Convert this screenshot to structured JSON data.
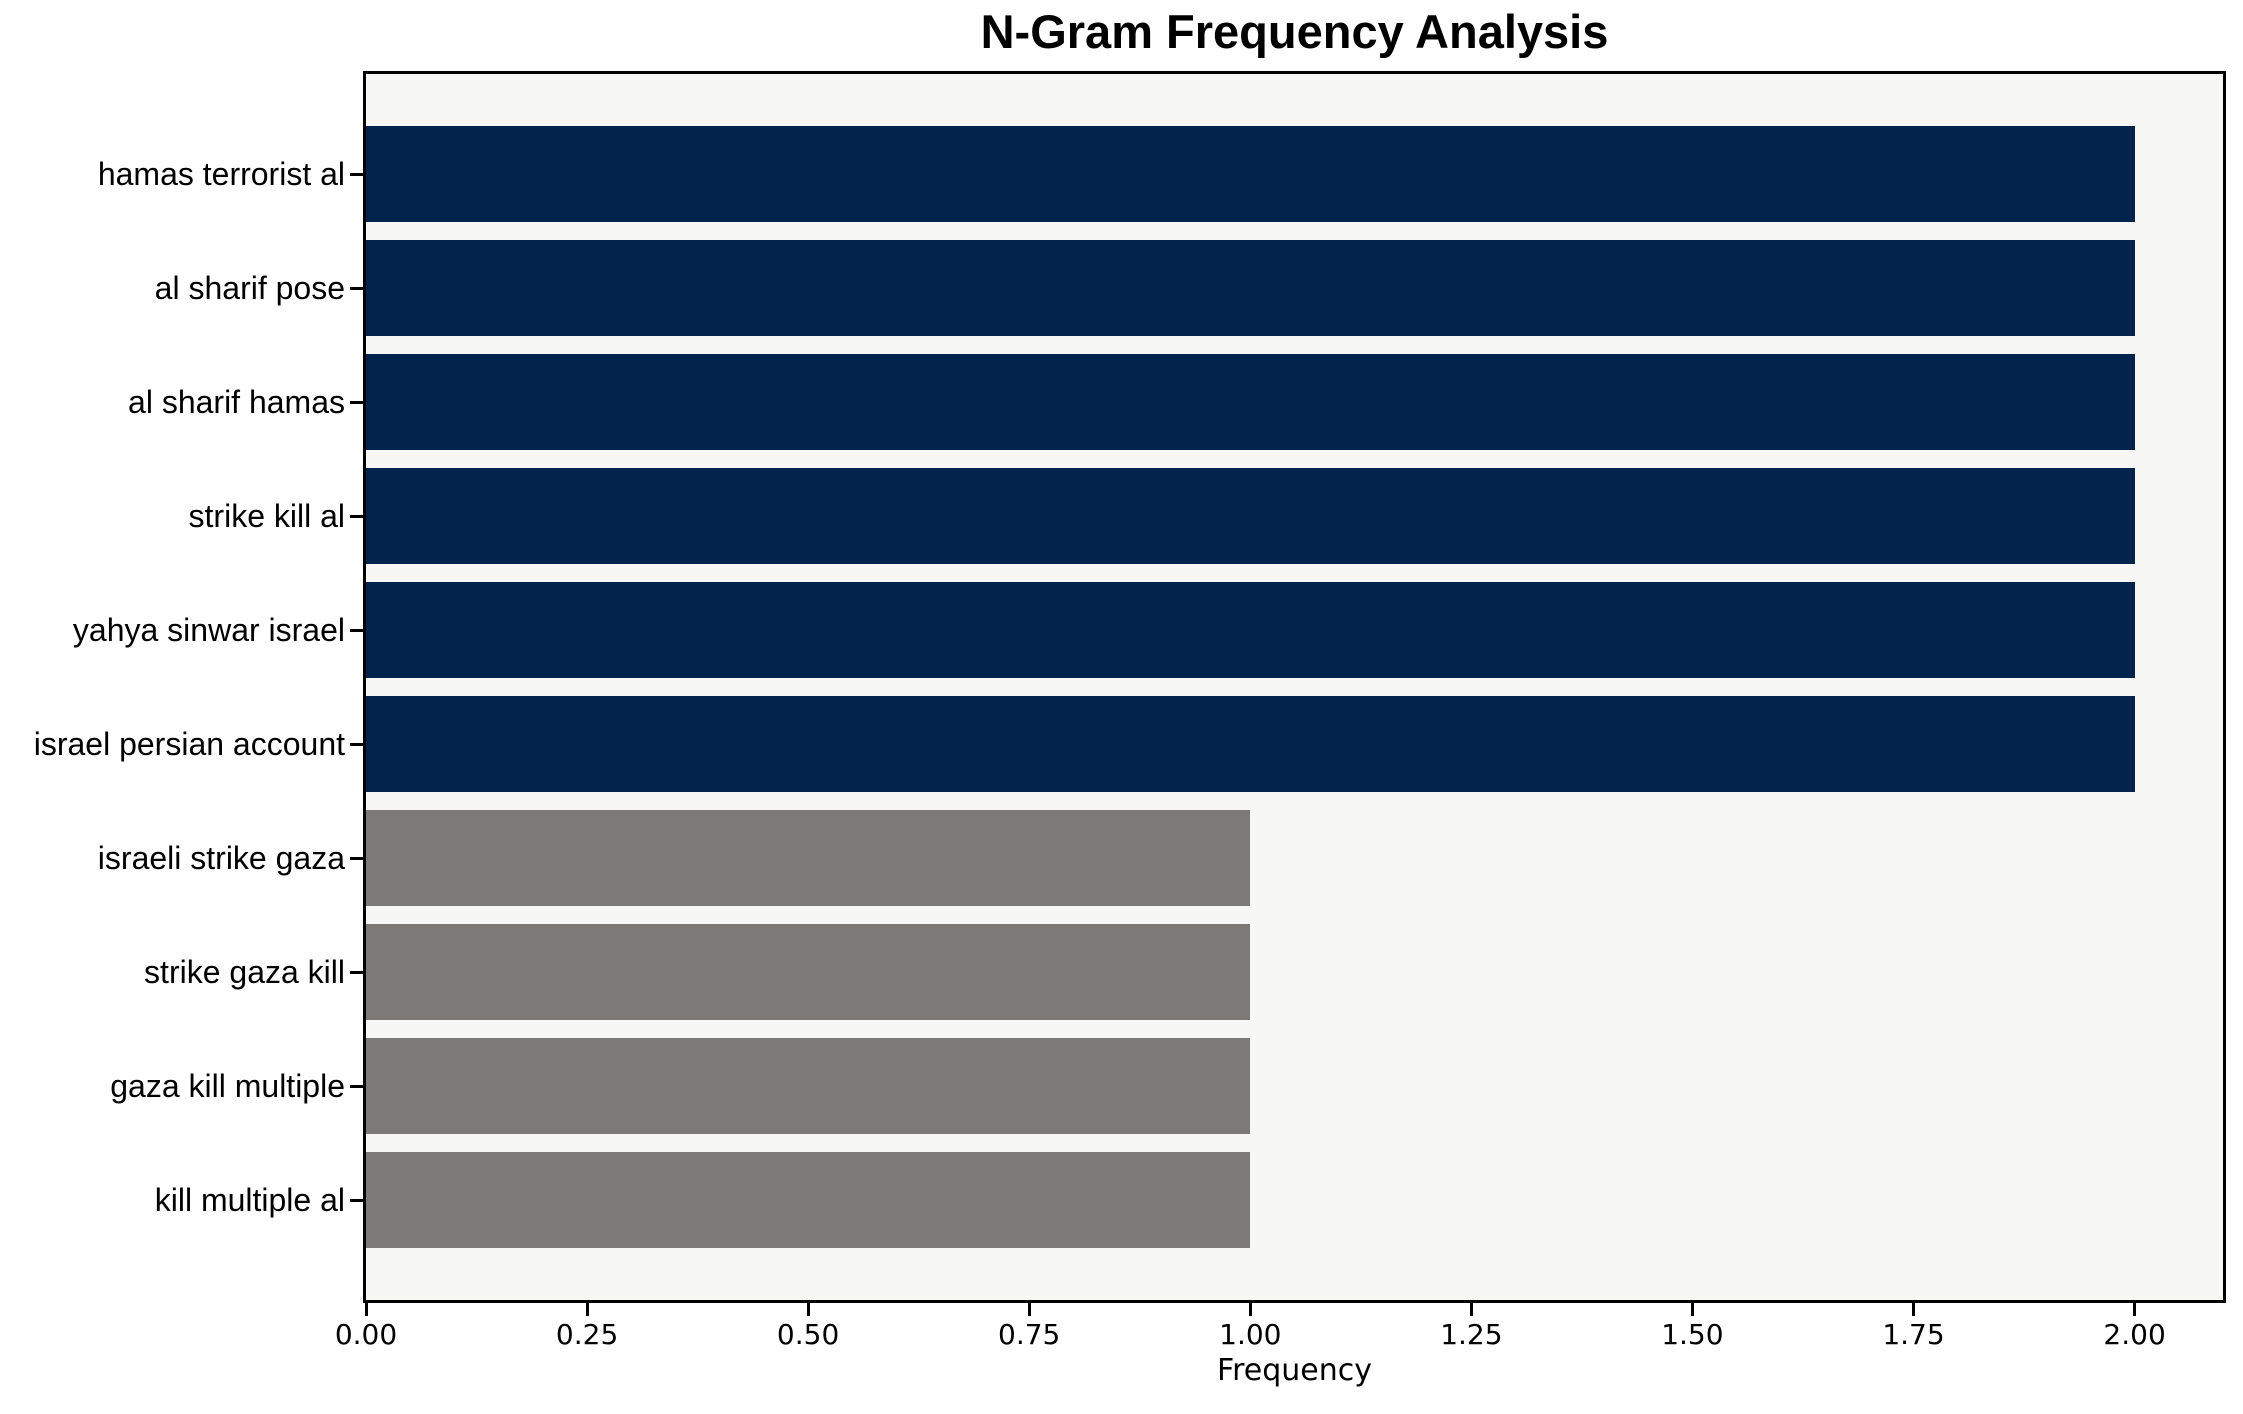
{
  "chart_data": {
    "type": "bar",
    "orientation": "horizontal",
    "title": "N-Gram Frequency Analysis",
    "xlabel": "Frequency",
    "ylabel": "",
    "categories": [
      "hamas terrorist al",
      "al sharif pose",
      "al sharif hamas",
      "strike kill al",
      "yahya sinwar israel",
      "israel persian account",
      "israeli strike gaza",
      "strike gaza kill",
      "gaza kill multiple",
      "kill multiple al"
    ],
    "values": [
      2,
      2,
      2,
      2,
      2,
      2,
      1,
      1,
      1,
      1
    ],
    "bar_colors": [
      "#02234c",
      "#02234c",
      "#02234c",
      "#02234c",
      "#02234c",
      "#02234c",
      "#7b7a76",
      "#7b7a76",
      "#7b7a76",
      "#7b7a76"
    ],
    "xlim": [
      0,
      2.1
    ],
    "xticks": [
      0,
      0.25,
      0.5,
      0.75,
      1.0,
      1.25,
      1.5,
      1.75,
      2.0
    ],
    "xtick_labels": [
      "0.00",
      "0.25",
      "0.50",
      "0.75",
      "1.00",
      "1.25",
      "1.50",
      "1.75",
      "2.00"
    ],
    "grid": false,
    "legend": "none",
    "colors": {
      "bar_high": "#02234c",
      "bar_low": "#7b7a76",
      "plot_background": "#f7f7f6",
      "figure_background": "#ffffff",
      "axis": "#000000",
      "text": "#000000"
    }
  }
}
